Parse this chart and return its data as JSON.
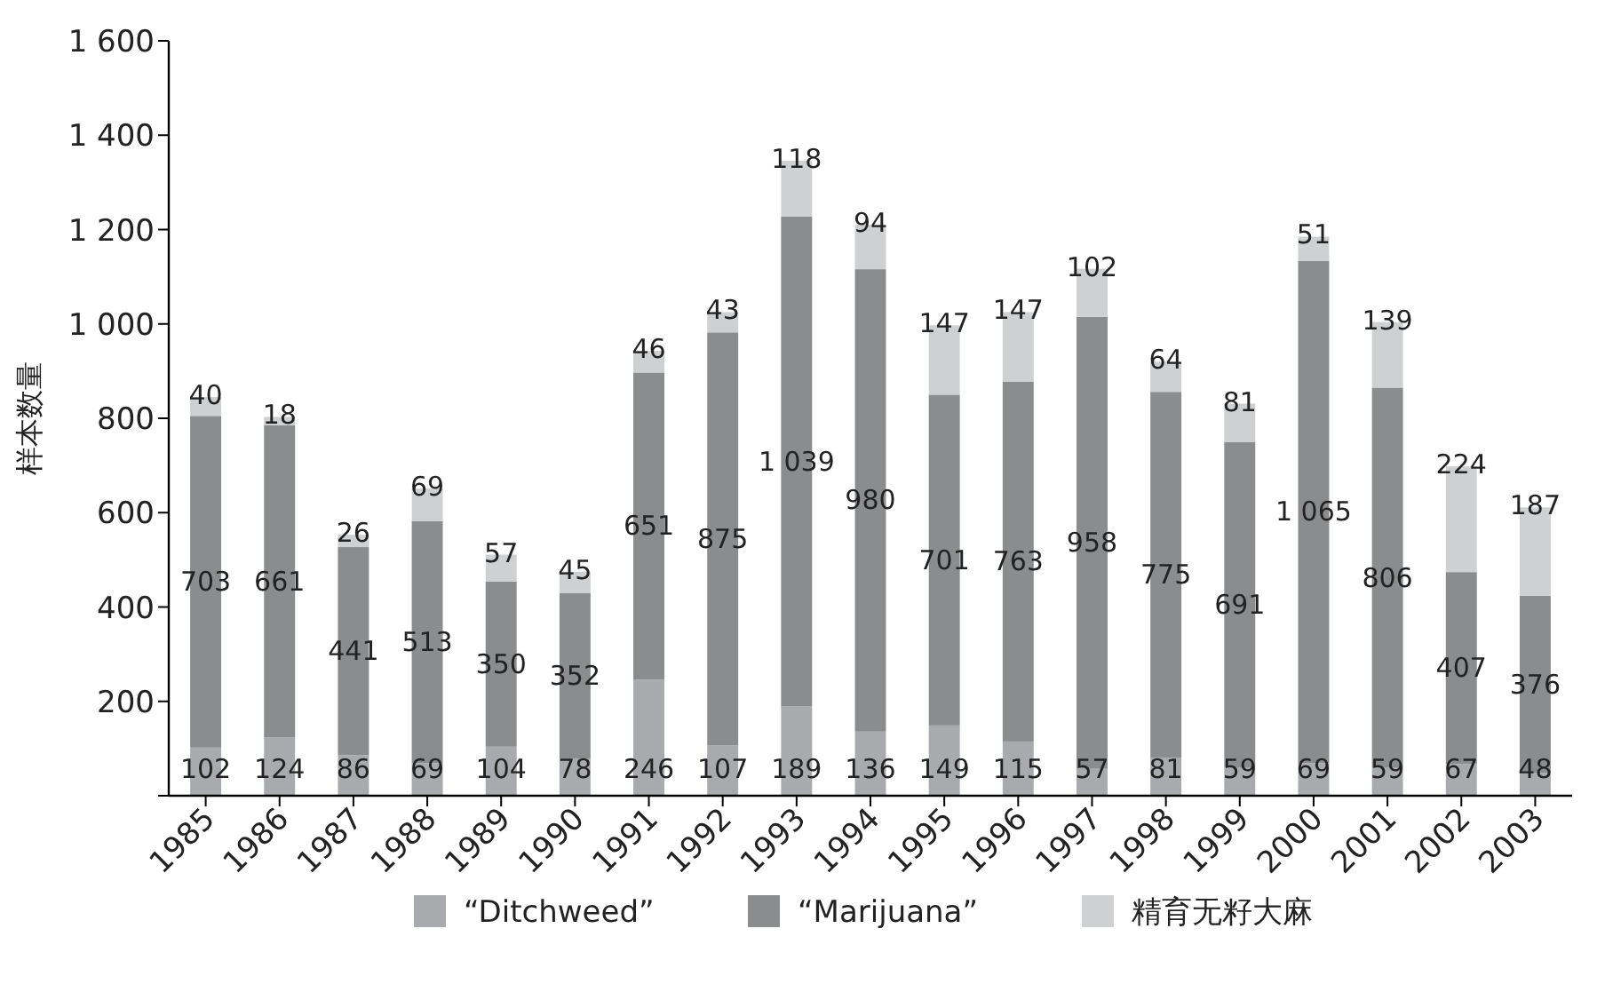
{
  "chart_data": {
    "type": "bar",
    "stacked": true,
    "ylabel": "样本数量",
    "legend": "bottom",
    "categories": [
      "1985",
      "1986",
      "1987",
      "1988",
      "1989",
      "1990",
      "1991",
      "1992",
      "1993",
      "1994",
      "1995",
      "1996",
      "1997",
      "1998",
      "1999",
      "2000",
      "2001",
      "2002",
      "2003"
    ],
    "ylim": [
      0,
      1600
    ],
    "yticks": [
      {
        "value": 0,
        "label": null
      },
      {
        "value": 200,
        "label": "200"
      },
      {
        "value": 400,
        "label": "400"
      },
      {
        "value": 600,
        "label": "600"
      },
      {
        "value": 800,
        "label": "800"
      },
      {
        "value": 1000,
        "label": "1 000"
      },
      {
        "value": 1200,
        "label": "1 200"
      },
      {
        "value": 1400,
        "label": "1 400"
      },
      {
        "value": 1600,
        "label": "1 600"
      }
    ],
    "series": [
      {
        "name": "“Ditchweed”",
        "color": "#a9aaad",
        "values": [
          102,
          124,
          86,
          69,
          104,
          78,
          246,
          107,
          189,
          136,
          149,
          115,
          57,
          81,
          59,
          69,
          59,
          67,
          48
        ],
        "value_labels": [
          "102",
          "124",
          "86",
          "69",
          "104",
          "78",
          "246",
          "107",
          "189",
          "136",
          "149",
          "115",
          "57",
          "81",
          "59",
          "69",
          "59",
          "67",
          "48"
        ]
      },
      {
        "name": "“Marijuana”",
        "color": "#8b8c8e",
        "values": [
          703,
          661,
          441,
          513,
          350,
          352,
          651,
          875,
          1039,
          980,
          701,
          763,
          958,
          775,
          691,
          1065,
          806,
          407,
          376
        ],
        "value_labels": [
          "703",
          "661",
          "441",
          "513",
          "350",
          "352",
          "651",
          "875",
          "1 039",
          "980",
          "701",
          "763",
          "958",
          "775",
          "691",
          "1 065",
          "806",
          "407",
          "376"
        ]
      },
      {
        "name": "精育无籽大麻",
        "color": "#cfd0d2",
        "values": [
          40,
          18,
          26,
          69,
          57,
          45,
          46,
          43,
          118,
          94,
          147,
          147,
          102,
          64,
          81,
          51,
          139,
          224,
          187
        ],
        "value_labels": [
          "40",
          "18",
          "26",
          "69",
          "57",
          "45",
          "46",
          "43",
          "118",
          "94",
          "147",
          "147",
          "102",
          "64",
          "81",
          "51",
          "139",
          "224",
          "187"
        ]
      }
    ]
  }
}
